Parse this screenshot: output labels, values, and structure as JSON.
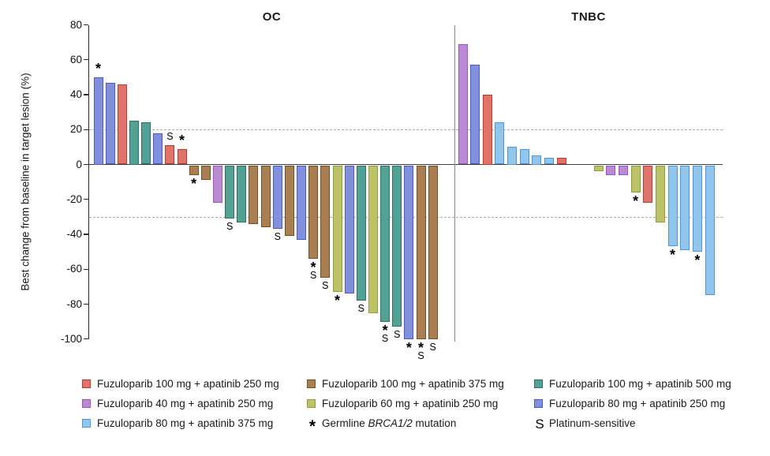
{
  "chart_data": {
    "type": "bar",
    "subtype": "waterfall",
    "title": "",
    "xlabel": "",
    "ylabel": "Best change from baseline in target lesion (%)",
    "ylim": [
      -100,
      80
    ],
    "yticks": [
      80,
      60,
      40,
      20,
      0,
      -20,
      -40,
      -60,
      -80,
      -100
    ],
    "dashed_reference_lines": [
      20,
      -30
    ],
    "grid": "off",
    "legend_position": "bottom",
    "mark_meanings": {
      "*": "Germline BRCA1/2 mutation",
      "S": "Platinum-sensitive"
    },
    "panels": [
      {
        "title": "OC",
        "bars": [
          {
            "group": "violet",
            "value": 50,
            "marks": [
              "*"
            ]
          },
          {
            "group": "violet",
            "value": 47
          },
          {
            "group": "red",
            "value": 46
          },
          {
            "group": "teal",
            "value": 25
          },
          {
            "group": "teal",
            "value": 24
          },
          {
            "group": "violet",
            "value": 18
          },
          {
            "group": "red",
            "value": 11,
            "marks": [
              "S"
            ]
          },
          {
            "group": "red",
            "value": 9,
            "marks": [
              "*"
            ]
          },
          {
            "group": "brown",
            "value": -6,
            "marks": [
              "*"
            ]
          },
          {
            "group": "brown",
            "value": -9
          },
          {
            "group": "purple",
            "value": -22
          },
          {
            "group": "teal",
            "value": -31,
            "marks": [
              "S"
            ]
          },
          {
            "group": "teal",
            "value": -33
          },
          {
            "group": "brown",
            "value": -34
          },
          {
            "group": "brown",
            "value": -36
          },
          {
            "group": "violet",
            "value": -37,
            "marks": [
              "S"
            ]
          },
          {
            "group": "brown",
            "value": -41
          },
          {
            "group": "violet",
            "value": -43
          },
          {
            "group": "brown",
            "value": -54,
            "marks": [
              "*",
              "S"
            ]
          },
          {
            "group": "brown",
            "value": -65,
            "marks": [
              "S"
            ]
          },
          {
            "group": "olive",
            "value": -73,
            "marks": [
              "*"
            ]
          },
          {
            "group": "violet",
            "value": -74
          },
          {
            "group": "teal",
            "value": -78,
            "marks": [
              "S"
            ]
          },
          {
            "group": "olive",
            "value": -85
          },
          {
            "group": "teal",
            "value": -90,
            "marks": [
              "*",
              "S"
            ]
          },
          {
            "group": "teal",
            "value": -93,
            "marks": [
              "S"
            ]
          },
          {
            "group": "violet",
            "value": -100,
            "marks": [
              "*"
            ]
          },
          {
            "group": "brown",
            "value": -100,
            "marks": [
              "*",
              "S"
            ]
          },
          {
            "group": "brown",
            "value": -100,
            "marks": [
              "S"
            ]
          }
        ]
      },
      {
        "title": "TNBC",
        "bars": [
          {
            "group": "purple",
            "value": 69
          },
          {
            "group": "violet",
            "value": 57
          },
          {
            "group": "red",
            "value": 40
          },
          {
            "group": "sky",
            "value": 24
          },
          {
            "group": "sky",
            "value": 10
          },
          {
            "group": "sky",
            "value": 9
          },
          {
            "group": "sky",
            "value": 5
          },
          {
            "group": "sky",
            "value": 4
          },
          {
            "group": "red",
            "value": 4
          },
          {
            "group": "olive",
            "value": -4,
            "gap_before": 2
          },
          {
            "group": "purple",
            "value": -6
          },
          {
            "group": "purple",
            "value": -6
          },
          {
            "group": "olive",
            "value": -16,
            "marks": [
              "*"
            ]
          },
          {
            "group": "red",
            "value": -22
          },
          {
            "group": "olive",
            "value": -33
          },
          {
            "group": "sky",
            "value": -47,
            "marks": [
              "*"
            ]
          },
          {
            "group": "sky",
            "value": -49
          },
          {
            "group": "sky",
            "value": -50,
            "marks": [
              "*"
            ]
          },
          {
            "group": "sky",
            "value": -75
          }
        ]
      }
    ],
    "legend": {
      "groups": [
        {
          "id": "red",
          "label": "Fuzuloparib 100 mg + apatinib 250 mg",
          "fill": "#E0746B",
          "stroke": "#C03A31"
        },
        {
          "id": "purple",
          "label": "Fuzuloparib 40 mg + apatinib 250 mg",
          "fill": "#BA8BD1",
          "stroke": "#9C56C8"
        },
        {
          "id": "sky",
          "label": "Fuzuloparib 80 mg + apatinib 375 mg",
          "fill": "#92C5EB",
          "stroke": "#4D95DC"
        },
        {
          "id": "brown",
          "label": "Fuzuloparib 100 mg + apatinib 375 mg",
          "fill": "#A97E52",
          "stroke": "#74501F"
        },
        {
          "id": "olive",
          "label": "Fuzuloparib 60 mg + apatinib 250 mg",
          "fill": "#BDC268",
          "stroke": "#8F9D3B"
        },
        {
          "id": "teal",
          "label": "Fuzuloparib 100 mg + apatinib 500 mg",
          "fill": "#53A095",
          "stroke": "#2F7168"
        },
        {
          "id": "violet",
          "label": "Fuzuloparib 80 mg + apatinib 250 mg",
          "fill": "#8290DB",
          "stroke": "#4A5BC8"
        }
      ],
      "symbols": {
        "brca": {
          "glyph": "*",
          "parts": [
            {
              "text": "Germline "
            },
            {
              "text": "BRCA1/2",
              "italic": true
            },
            {
              "text": " mutation"
            }
          ]
        },
        "plat": {
          "glyph": "S",
          "parts": [
            {
              "text": "Platinum-sensitive"
            }
          ]
        }
      },
      "columns": [
        [
          {
            "type": "group",
            "id": "red"
          },
          {
            "type": "group",
            "id": "purple"
          },
          {
            "type": "group",
            "id": "sky"
          }
        ],
        [
          {
            "type": "group",
            "id": "brown"
          },
          {
            "type": "group",
            "id": "olive"
          },
          {
            "type": "symbol",
            "id": "brca"
          }
        ],
        [
          {
            "type": "group",
            "id": "teal"
          },
          {
            "type": "group",
            "id": "violet"
          },
          {
            "type": "symbol",
            "id": "plat"
          }
        ]
      ]
    }
  }
}
